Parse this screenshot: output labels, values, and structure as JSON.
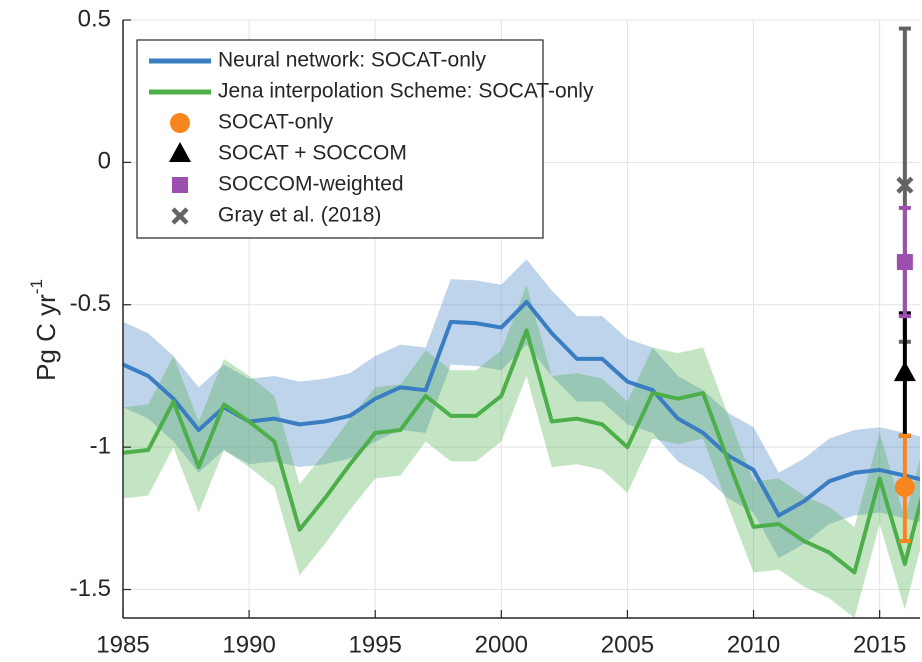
{
  "chart_data": {
    "type": "line",
    "ylabel": "Pg C yr",
    "ylabel_superscript": "-1",
    "x": [
      1985,
      1986,
      1987,
      1988,
      1989,
      1990,
      1991,
      1992,
      1993,
      1994,
      1995,
      1996,
      1997,
      1998,
      1999,
      2000,
      2001,
      2002,
      2003,
      2004,
      2005,
      2006,
      2007,
      2008,
      2009,
      2010,
      2011,
      2012,
      2013,
      2014,
      2015,
      2016,
      2017
    ],
    "xlim": [
      1985,
      2016.6
    ],
    "ylim": [
      -1.6,
      0.5
    ],
    "xticks": [
      1985,
      1990,
      1995,
      2000,
      2005,
      2010,
      2015
    ],
    "yticks": [
      0.5,
      0,
      -0.5,
      -1,
      -1.5
    ],
    "grid": true,
    "legend": "upper left",
    "series": [
      {
        "name": "Neural network: SOCAT-only",
        "color": "#3a7dc2",
        "values": [
          -0.71,
          -0.75,
          -0.83,
          -0.94,
          -0.86,
          -0.91,
          -0.9,
          -0.92,
          -0.91,
          -0.89,
          -0.83,
          -0.79,
          -0.8,
          -0.56,
          -0.565,
          -0.58,
          -0.49,
          -0.6,
          -0.69,
          -0.69,
          -0.77,
          -0.8,
          -0.9,
          -0.95,
          -1.03,
          -1.08,
          -1.24,
          -1.19,
          -1.12,
          -1.09,
          -1.08,
          -1.1,
          -1.12
        ],
        "lower": [
          -0.86,
          -0.9,
          -0.98,
          -1.09,
          -1.01,
          -1.06,
          -1.05,
          -1.07,
          -1.06,
          -1.04,
          -0.98,
          -0.94,
          -0.95,
          -0.71,
          -0.715,
          -0.73,
          -0.64,
          -0.75,
          -0.84,
          -0.84,
          -0.92,
          -0.95,
          -1.05,
          -1.1,
          -1.18,
          -1.23,
          -1.39,
          -1.34,
          -1.27,
          -1.24,
          -1.23,
          -1.25,
          -1.27
        ],
        "upper": [
          -0.56,
          -0.6,
          -0.68,
          -0.79,
          -0.71,
          -0.76,
          -0.75,
          -0.77,
          -0.76,
          -0.74,
          -0.68,
          -0.64,
          -0.65,
          -0.41,
          -0.415,
          -0.43,
          -0.34,
          -0.45,
          -0.54,
          -0.54,
          -0.62,
          -0.65,
          -0.75,
          -0.8,
          -0.88,
          -0.93,
          -1.09,
          -1.04,
          -0.97,
          -0.94,
          -0.93,
          -0.95,
          -0.97
        ]
      },
      {
        "name": "Jena interpolation Scheme: SOCAT-only",
        "color": "#4daf4a",
        "values": [
          -1.02,
          -1.01,
          -0.84,
          -1.07,
          -0.85,
          -0.91,
          -0.98,
          -1.29,
          -1.18,
          -1.06,
          -0.95,
          -0.94,
          -0.82,
          -0.89,
          -0.89,
          -0.82,
          -0.59,
          -0.91,
          -0.9,
          -0.92,
          -1.0,
          -0.81,
          -0.83,
          -0.81,
          -1.05,
          -1.28,
          -1.27,
          -1.33,
          -1.37,
          -1.44,
          -1.11,
          -1.41,
          -1.06
        ],
        "lower": [
          -1.18,
          -1.17,
          -1.0,
          -1.23,
          -1.01,
          -1.07,
          -1.14,
          -1.45,
          -1.34,
          -1.22,
          -1.11,
          -1.1,
          -0.98,
          -1.05,
          -1.05,
          -0.98,
          -0.75,
          -1.07,
          -1.06,
          -1.08,
          -1.16,
          -0.97,
          -0.99,
          -0.97,
          -1.21,
          -1.44,
          -1.43,
          -1.49,
          -1.53,
          -1.6,
          -1.27,
          -1.57,
          -1.22
        ],
        "upper": [
          -0.86,
          -0.85,
          -0.68,
          -0.91,
          -0.69,
          -0.75,
          -0.82,
          -1.13,
          -1.02,
          -0.9,
          -0.79,
          -0.78,
          -0.66,
          -0.73,
          -0.73,
          -0.66,
          -0.43,
          -0.75,
          -0.74,
          -0.76,
          -0.84,
          -0.65,
          -0.67,
          -0.65,
          -0.89,
          -1.12,
          -1.11,
          -1.17,
          -1.21,
          -1.28,
          -0.95,
          -1.25,
          -0.9
        ]
      }
    ],
    "points": [
      {
        "name": "SOCAT-only",
        "color": "#f7861f",
        "marker": "circle",
        "x": 2016,
        "value": -1.14,
        "low": -1.33,
        "high": -0.96
      },
      {
        "name": "SOCAT + SOCCOM",
        "color": "#000000",
        "marker": "triangle",
        "x": 2016,
        "value": -0.74,
        "low": -0.96,
        "high": -0.53
      },
      {
        "name": "SOCCOM-weighted",
        "color": "#9b4fae",
        "marker": "square",
        "x": 2016,
        "value": -0.35,
        "low": -0.54,
        "high": -0.16
      },
      {
        "name": "Gray et al. (2018)",
        "color": "#636363",
        "marker": "cross",
        "x": 2016,
        "value": -0.08,
        "low": -0.63,
        "high": 0.47
      }
    ]
  }
}
